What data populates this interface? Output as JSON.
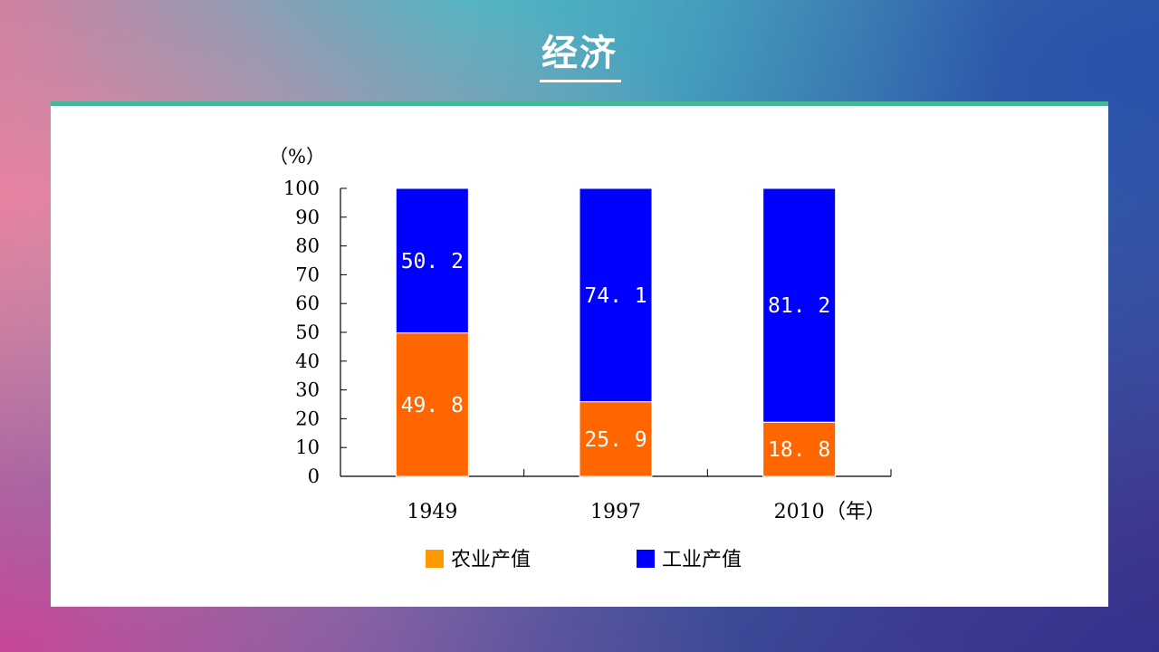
{
  "page": {
    "title": "经济"
  },
  "chart_data": {
    "type": "bar",
    "stacked": true,
    "categories": [
      "1949",
      "1997",
      "2010"
    ],
    "series": [
      {
        "name": "农业产值",
        "values": [
          49.8,
          25.9,
          18.8
        ],
        "color": "#ff6600",
        "legend_color": "#ff9900"
      },
      {
        "name": "工业产值",
        "values": [
          50.2,
          74.1,
          81.2
        ],
        "color": "#0000ff",
        "legend_color": "#0000ff"
      }
    ],
    "ylabel": "（%）",
    "xlabel": "（年）",
    "ylim": [
      0,
      100
    ],
    "yticks": [
      0,
      10,
      20,
      30,
      40,
      50,
      60,
      70,
      80,
      90,
      100
    ],
    "grid": false,
    "legend_position": "bottom"
  }
}
